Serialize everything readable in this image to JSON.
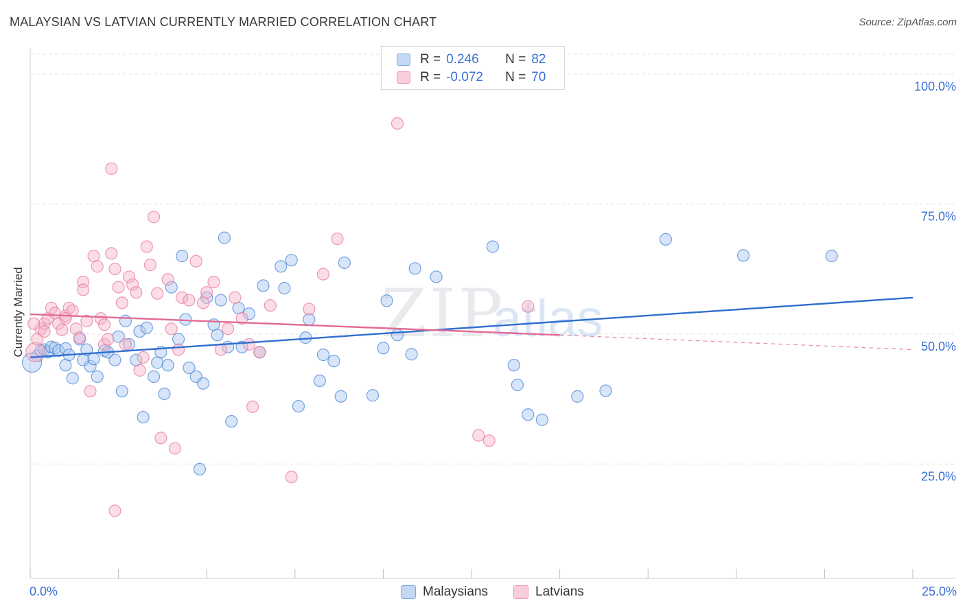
{
  "header": {
    "title": "MALAYSIAN VS LATVIAN CURRENTLY MARRIED CORRELATION CHART",
    "source": "Source: ZipAtlas.com"
  },
  "legend": {
    "rows": [
      {
        "r_label": "R =",
        "r_value": "0.246",
        "n_label": "N =",
        "n_value": "82",
        "color": "#a9c6ef"
      },
      {
        "r_label": "R =",
        "r_value": "-0.072",
        "n_label": "N =",
        "n_value": "70",
        "color": "#f5b3c8"
      }
    ]
  },
  "bottom_legend": {
    "items": [
      {
        "label": "Malaysians",
        "color": "#a9c6ef"
      },
      {
        "label": "Latvians",
        "color": "#f5b3c8"
      }
    ]
  },
  "watermark": {
    "zip": "ZIP",
    "atlas": "atlas"
  },
  "chart_data": {
    "type": "scatter",
    "title": "MALAYSIAN VS LATVIAN CURRENTLY MARRIED CORRELATION CHART",
    "ylabel": "Currently Married",
    "xlim": [
      0,
      25
    ],
    "ylim": [
      3,
      105
    ],
    "x_tick_labels": [
      "0.0%",
      "25.0%"
    ],
    "y_ticks": [
      25,
      50,
      75,
      100
    ],
    "y_tick_labels": [
      "25.0%",
      "50.0%",
      "75.0%",
      "100.0%"
    ],
    "grid": true,
    "legend_position": "top-center",
    "series": [
      {
        "name": "Malaysians",
        "color": "#4a86d8",
        "fill": "#a9c6ef",
        "trend": {
          "x": [
            0,
            25
          ],
          "y": [
            45.5,
            57.0
          ],
          "color": "#2f6fcf"
        },
        "points": [
          [
            0.2,
            45.8
          ],
          [
            0.3,
            46.8
          ],
          [
            0.4,
            47.0
          ],
          [
            0.5,
            46.5
          ],
          [
            0.6,
            47.5
          ],
          [
            0.7,
            47.3
          ],
          [
            0.8,
            46.8
          ],
          [
            1.0,
            47.2
          ],
          [
            1.0,
            44.0
          ],
          [
            1.1,
            46.0
          ],
          [
            1.2,
            41.5
          ],
          [
            1.4,
            49.0
          ],
          [
            1.5,
            45.0
          ],
          [
            1.6,
            47.0
          ],
          [
            1.7,
            43.8
          ],
          [
            1.8,
            45.2
          ],
          [
            1.9,
            41.8
          ],
          [
            2.1,
            46.8
          ],
          [
            2.2,
            46.5
          ],
          [
            2.4,
            45.0
          ],
          [
            2.5,
            49.5
          ],
          [
            2.6,
            39.0
          ],
          [
            2.7,
            52.5
          ],
          [
            2.8,
            48.0
          ],
          [
            3.0,
            45.0
          ],
          [
            3.1,
            50.5
          ],
          [
            3.2,
            34.0
          ],
          [
            3.3,
            51.2
          ],
          [
            3.5,
            41.8
          ],
          [
            3.6,
            44.5
          ],
          [
            3.7,
            46.5
          ],
          [
            3.8,
            38.5
          ],
          [
            3.9,
            44.0
          ],
          [
            4.0,
            59.0
          ],
          [
            4.2,
            49.0
          ],
          [
            4.3,
            65.0
          ],
          [
            4.4,
            52.8
          ],
          [
            4.5,
            43.5
          ],
          [
            4.7,
            41.8
          ],
          [
            4.8,
            24.0
          ],
          [
            4.9,
            40.5
          ],
          [
            5.0,
            57.0
          ],
          [
            5.2,
            51.8
          ],
          [
            5.3,
            49.8
          ],
          [
            5.4,
            56.5
          ],
          [
            5.5,
            68.5
          ],
          [
            5.6,
            47.5
          ],
          [
            5.7,
            33.2
          ],
          [
            5.9,
            55.0
          ],
          [
            6.0,
            47.5
          ],
          [
            6.2,
            53.9
          ],
          [
            6.5,
            46.5
          ],
          [
            6.6,
            59.3
          ],
          [
            7.1,
            63.0
          ],
          [
            7.2,
            58.8
          ],
          [
            7.4,
            64.2
          ],
          [
            7.6,
            36.1
          ],
          [
            7.8,
            49.3
          ],
          [
            7.9,
            52.8
          ],
          [
            8.2,
            41.0
          ],
          [
            8.3,
            46.0
          ],
          [
            8.6,
            44.8
          ],
          [
            8.8,
            38.0
          ],
          [
            8.9,
            63.7
          ],
          [
            9.7,
            38.2
          ],
          [
            10.0,
            47.3
          ],
          [
            10.1,
            56.4
          ],
          [
            10.4,
            49.8
          ],
          [
            10.8,
            46.1
          ],
          [
            10.9,
            62.6
          ],
          [
            11.5,
            61.0
          ],
          [
            13.1,
            66.8
          ],
          [
            13.7,
            44.0
          ],
          [
            13.8,
            40.2
          ],
          [
            14.1,
            34.5
          ],
          [
            14.5,
            33.5
          ],
          [
            15.5,
            38.0
          ],
          [
            16.3,
            39.1
          ],
          [
            18.0,
            68.2
          ],
          [
            20.2,
            65.1
          ],
          [
            22.7,
            65.0
          ],
          [
            0.05,
            44.5
          ]
        ]
      },
      {
        "name": "Latvians",
        "color": "#e87aa0",
        "fill": "#f5b3c8",
        "trend": {
          "x": [
            0,
            15
          ],
          "y": [
            53.8,
            49.8
          ],
          "dashed_to": [
            25,
            47.0
          ],
          "color": "#e26a94"
        },
        "points": [
          [
            0.15,
            46.5
          ],
          [
            0.2,
            49.0
          ],
          [
            0.3,
            51.0
          ],
          [
            0.4,
            52.0
          ],
          [
            0.5,
            53.0
          ],
          [
            0.6,
            55.0
          ],
          [
            0.7,
            54.0
          ],
          [
            0.8,
            52.0
          ],
          [
            0.9,
            50.8
          ],
          [
            1.0,
            53.5
          ],
          [
            1.1,
            55.0
          ],
          [
            1.2,
            54.5
          ],
          [
            1.3,
            51.0
          ],
          [
            1.4,
            49.3
          ],
          [
            1.5,
            60.0
          ],
          [
            1.6,
            52.5
          ],
          [
            1.7,
            39.0
          ],
          [
            1.8,
            65.0
          ],
          [
            1.9,
            63.0
          ],
          [
            2.0,
            53.0
          ],
          [
            2.1,
            48.0
          ],
          [
            2.2,
            49.0
          ],
          [
            2.3,
            65.5
          ],
          [
            2.4,
            62.5
          ],
          [
            2.5,
            59.0
          ],
          [
            2.6,
            56.0
          ],
          [
            2.7,
            48.0
          ],
          [
            2.8,
            61.0
          ],
          [
            2.9,
            59.5
          ],
          [
            3.0,
            58.0
          ],
          [
            3.1,
            43.0
          ],
          [
            3.2,
            45.5
          ],
          [
            3.3,
            66.8
          ],
          [
            3.4,
            63.3
          ],
          [
            3.5,
            72.5
          ],
          [
            3.6,
            57.8
          ],
          [
            3.7,
            30.0
          ],
          [
            3.9,
            60.5
          ],
          [
            4.0,
            51.0
          ],
          [
            4.1,
            28.0
          ],
          [
            4.2,
            47.0
          ],
          [
            4.3,
            57.0
          ],
          [
            4.5,
            56.5
          ],
          [
            4.7,
            64.0
          ],
          [
            4.9,
            56.0
          ],
          [
            5.0,
            58.0
          ],
          [
            5.2,
            60.0
          ],
          [
            5.4,
            47.0
          ],
          [
            5.6,
            51.0
          ],
          [
            5.8,
            57.0
          ],
          [
            6.0,
            53.0
          ],
          [
            6.2,
            48.0
          ],
          [
            6.3,
            36.0
          ],
          [
            6.5,
            46.5
          ],
          [
            6.8,
            55.5
          ],
          [
            7.4,
            22.5
          ],
          [
            7.9,
            54.8
          ],
          [
            8.3,
            61.5
          ],
          [
            8.7,
            68.3
          ],
          [
            10.4,
            90.5
          ],
          [
            12.7,
            30.5
          ],
          [
            13.0,
            29.5
          ],
          [
            14.1,
            55.3
          ],
          [
            0.1,
            52.0
          ],
          [
            0.4,
            50.5
          ],
          [
            1.0,
            53.0
          ],
          [
            1.5,
            58.5
          ],
          [
            2.1,
            51.8
          ],
          [
            2.3,
            81.8
          ],
          [
            2.4,
            16.0
          ]
        ]
      }
    ]
  }
}
